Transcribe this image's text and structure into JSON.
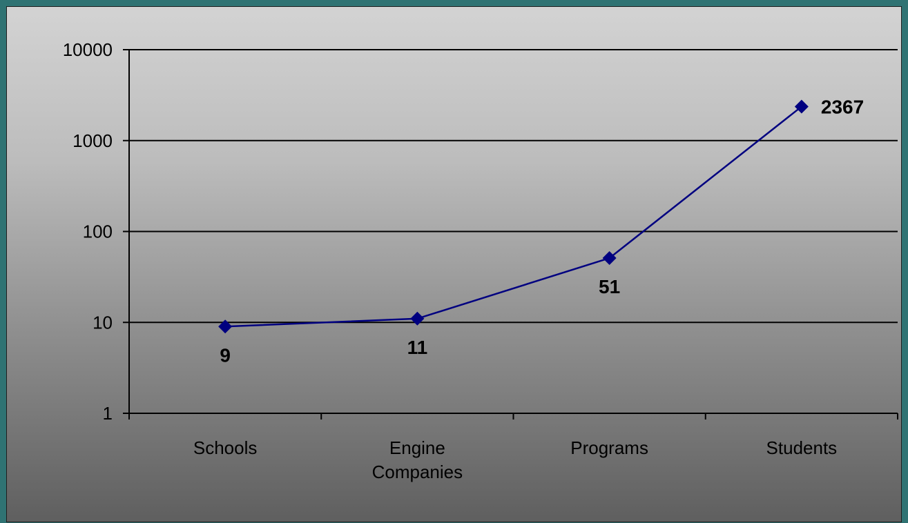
{
  "colors": {
    "frame": "#2f7373",
    "series": "#000080",
    "gridline": "#000000"
  },
  "chart_data": {
    "type": "line",
    "title": "",
    "xlabel": "",
    "ylabel": "",
    "y_scale": "log",
    "ylim": [
      1,
      10000
    ],
    "y_ticks": [
      "1",
      "10",
      "100",
      "1000",
      "10000"
    ],
    "y_tick_values": [
      1,
      10,
      100,
      1000,
      10000
    ],
    "categories": [
      [
        "Schools"
      ],
      [
        "Engine",
        "Companies"
      ],
      [
        "Programs"
      ],
      [
        "Students"
      ]
    ],
    "series": [
      {
        "values": [
          9,
          11,
          51,
          2367
        ],
        "labels": [
          "9",
          "11",
          "51",
          "2367"
        ],
        "marker": "diamond"
      }
    ],
    "grid": true,
    "legend": "none"
  }
}
